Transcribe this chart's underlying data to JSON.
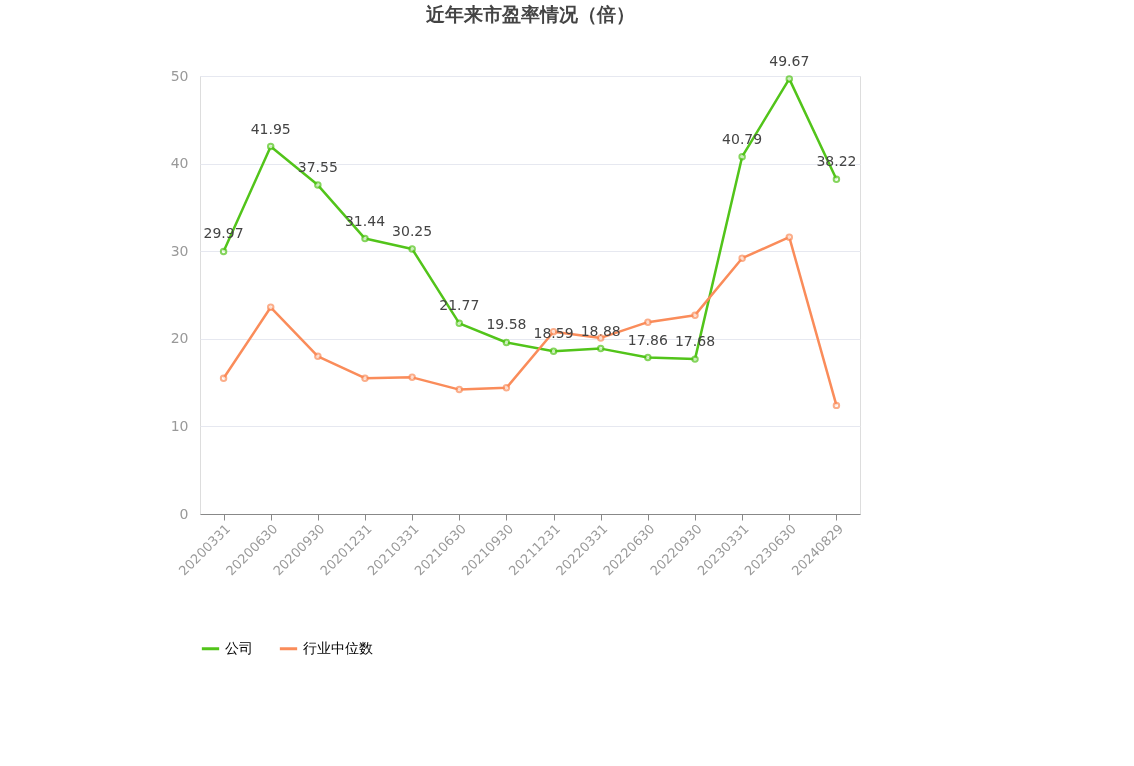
{
  "chart_data": {
    "type": "line",
    "title": "近年来市盈率情况（倍）",
    "categories": [
      "20200331",
      "20200630",
      "20200930",
      "20201231",
      "20210331",
      "20210630",
      "20210930",
      "20211231",
      "20220331",
      "20220630",
      "20220930",
      "20230331",
      "20230630",
      "20240829"
    ],
    "series": [
      {
        "name": "公司",
        "color": "#52c41a",
        "values": [
          29.97,
          41.95,
          37.55,
          31.44,
          30.25,
          21.77,
          19.58,
          18.59,
          18.88,
          17.86,
          17.68,
          40.79,
          49.67,
          38.22
        ],
        "value_labels": [
          "29.97",
          "41.95",
          "37.55",
          "31.44",
          "30.25",
          "21.77",
          "19.58",
          "18.59",
          "18.88",
          "17.86",
          "17.68",
          "40.79",
          "49.67",
          "38.22"
        ]
      },
      {
        "name": "行业中位数",
        "color": "#fa8c5a",
        "values": [
          15.5,
          23.6,
          18.0,
          15.5,
          15.6,
          14.2,
          14.4,
          20.8,
          20.1,
          21.9,
          22.7,
          29.2,
          31.6,
          12.4
        ]
      }
    ],
    "ylim": [
      0,
      50
    ],
    "yticks": [
      0,
      10,
      20,
      30,
      40,
      50
    ],
    "grid": "y",
    "legend": "bottom",
    "marker": "circle",
    "line_style": "solid"
  }
}
